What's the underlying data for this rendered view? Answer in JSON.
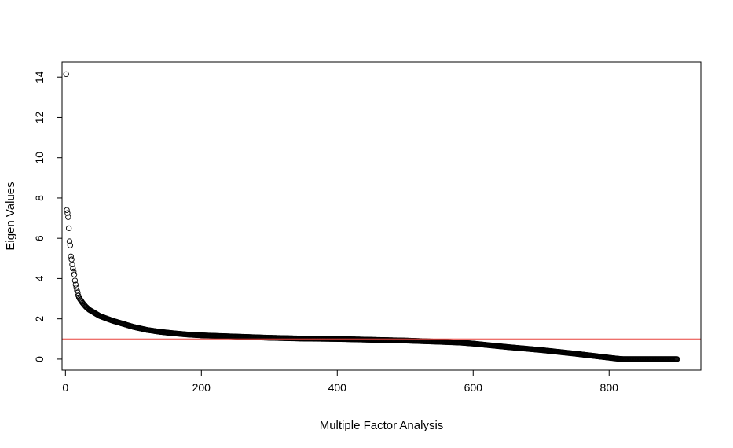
{
  "chart_data": {
    "type": "scatter",
    "title": "",
    "xlabel": "Multiple Factor Analysis",
    "ylabel": "Eigen Values",
    "xlim": [
      -5,
      935
    ],
    "ylim": [
      -0.55,
      14.75
    ],
    "x_ticks": [
      0,
      200,
      400,
      600,
      800
    ],
    "y_ticks": [
      0,
      2,
      4,
      6,
      8,
      10,
      12,
      14
    ],
    "grid": false,
    "legend": "none",
    "point_color": "#000000",
    "reference_line": {
      "y": 1,
      "color": "#e8403a"
    },
    "series": [
      {
        "n_points": 900,
        "x": [
          1,
          2,
          3,
          4,
          5,
          6,
          7,
          8,
          9,
          10,
          11,
          12,
          13,
          14,
          15,
          16,
          17,
          18,
          19,
          20,
          22,
          25,
          30,
          35,
          40,
          45,
          50,
          60,
          70,
          80,
          90,
          100,
          120,
          140,
          160,
          180,
          200,
          250,
          300,
          350,
          400,
          450,
          500,
          550,
          580,
          600,
          620,
          650,
          700,
          750,
          780,
          800,
          810,
          820,
          850,
          900
        ],
        "y": [
          14.15,
          7.4,
          7.25,
          7.05,
          6.5,
          5.85,
          5.65,
          5.1,
          4.95,
          4.7,
          4.5,
          4.35,
          4.2,
          3.9,
          3.7,
          3.55,
          3.4,
          3.3,
          3.15,
          3.05,
          2.95,
          2.8,
          2.6,
          2.45,
          2.35,
          2.25,
          2.15,
          2.02,
          1.9,
          1.8,
          1.7,
          1.6,
          1.45,
          1.35,
          1.28,
          1.22,
          1.18,
          1.12,
          1.06,
          1.02,
          1.0,
          0.96,
          0.92,
          0.86,
          0.82,
          0.77,
          0.7,
          0.6,
          0.45,
          0.27,
          0.15,
          0.07,
          0.03,
          0.0,
          0.0,
          0.0
        ]
      }
    ]
  }
}
